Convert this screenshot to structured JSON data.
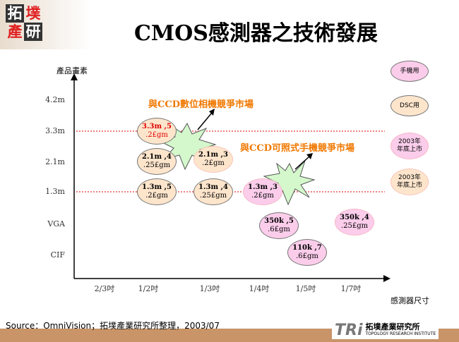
{
  "header": {
    "title": "CMOS感測器之技術發展",
    "logo": [
      "拓",
      "墣",
      "產",
      "研"
    ]
  },
  "chart_data": {
    "type": "scatter",
    "title": "CMOS感測器之技術發展",
    "ylabel": "產品畫素",
    "xlabel": "感測器尺寸",
    "y_ticks": [
      "4.2m",
      "3.3m",
      "2.1m",
      "1.3m",
      "VGA",
      "CIF"
    ],
    "x_ticks": [
      "2/3吋",
      "1/2吋",
      "1/3吋",
      "1/4吋",
      "1/5吋",
      "1/7吋"
    ],
    "reference_lines": [
      "3.3m",
      "1.3m"
    ],
    "points": [
      {
        "x": "1/2吋",
        "y": "3.3m",
        "line1": "3.3m ,5",
        "line2": ".2£gm",
        "type": "DSC用",
        "highlight": true
      },
      {
        "x": "1/2吋",
        "y": "2.1m",
        "line1": "2.1m ,4",
        "line2": ".25£gm",
        "type": "DSC用"
      },
      {
        "x": "1/2吋",
        "y": "1.3m",
        "line1": "1.3m ,5",
        "line2": ".2£gm",
        "type": "DSC用"
      },
      {
        "x": "1/3吋",
        "y": "2.1m",
        "line1": "2.1m ,3",
        "line2": ".2£gm",
        "type": "DSC 2003年年底上市"
      },
      {
        "x": "1/3吋",
        "y": "1.3m",
        "line1": "1.3m ,4",
        "line2": ".25£gm",
        "type": "DSC用"
      },
      {
        "x": "1/4吋",
        "y": "1.3m",
        "line1": "1.3m ,3",
        "line2": ".2£gm",
        "type": "手機 2003年年底上市"
      },
      {
        "x": "1/4吋~1/5吋",
        "y": "VGA",
        "line1": "350k ,5",
        "line2": ".6£gm",
        "type": "手機用"
      },
      {
        "x": "1/7吋",
        "y": "VGA",
        "line1": "350k ,4",
        "line2": ".25£gm",
        "type": "手機 2003年年底上市"
      },
      {
        "x": "1/5吋",
        "y": "CIF",
        "line1": "110k ,7",
        "line2": ".6£gm",
        "type": "手機用"
      }
    ],
    "annotations": [
      "與CCD數位相機競爭市場",
      "與CCD可照式手機競爭市場"
    ],
    "legend": [
      "手機用",
      "DSC用",
      "2003年\n年底上市",
      "2003年\n年底上市"
    ],
    "legend_position": "right"
  },
  "footer": {
    "source": "Source：OmniVision；拓墣產業研究所整理，2003/07",
    "brand": "TRi",
    "brand_cn": "拓墣產業研究所",
    "brand_en": "TOPOLOGY RESEARCH INSTITUTE"
  },
  "colors": {
    "peach": "#fde5cc",
    "pink": "#fbcdeb",
    "annotation": "#f07800",
    "refline": "#e00000",
    "footer": "#c89468"
  }
}
